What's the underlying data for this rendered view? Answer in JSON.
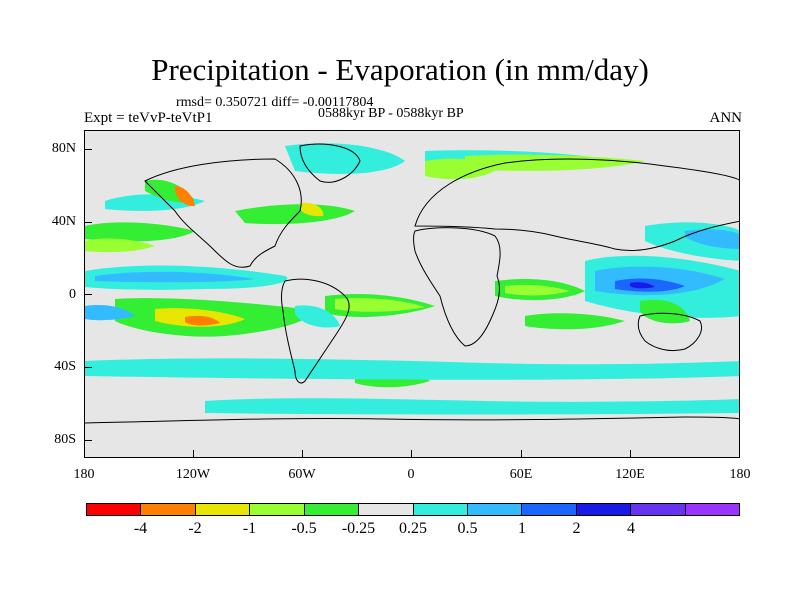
{
  "title": "Precipitation - Evaporation (in mm/day)",
  "stats_text": "rmsd= 0.350721 diff= -0.00117804",
  "period_text": "0588kyr BP - 0588kyr BP",
  "expt_text": "Expt = teVvP-teVtP1",
  "season_text": "ANN",
  "lat_labels": [
    "80N",
    "40N",
    "0",
    "40S",
    "80S"
  ],
  "lon_labels": [
    "180",
    "120W",
    "60W",
    "0",
    "60E",
    "120E",
    "180"
  ],
  "colorbar": {
    "colors": [
      "#ff0000",
      "#ff8000",
      "#e6e600",
      "#99ff33",
      "#33ee33",
      "#e6e6e6",
      "#33eedd",
      "#33bbff",
      "#1a66ff",
      "#1a1ae6",
      "#6633ee",
      "#9933ff"
    ],
    "labels": [
      "-4",
      "-2",
      "-1",
      "-0.5",
      "-0.25",
      "0.25",
      "0.5",
      "1",
      "2",
      "4"
    ]
  }
}
